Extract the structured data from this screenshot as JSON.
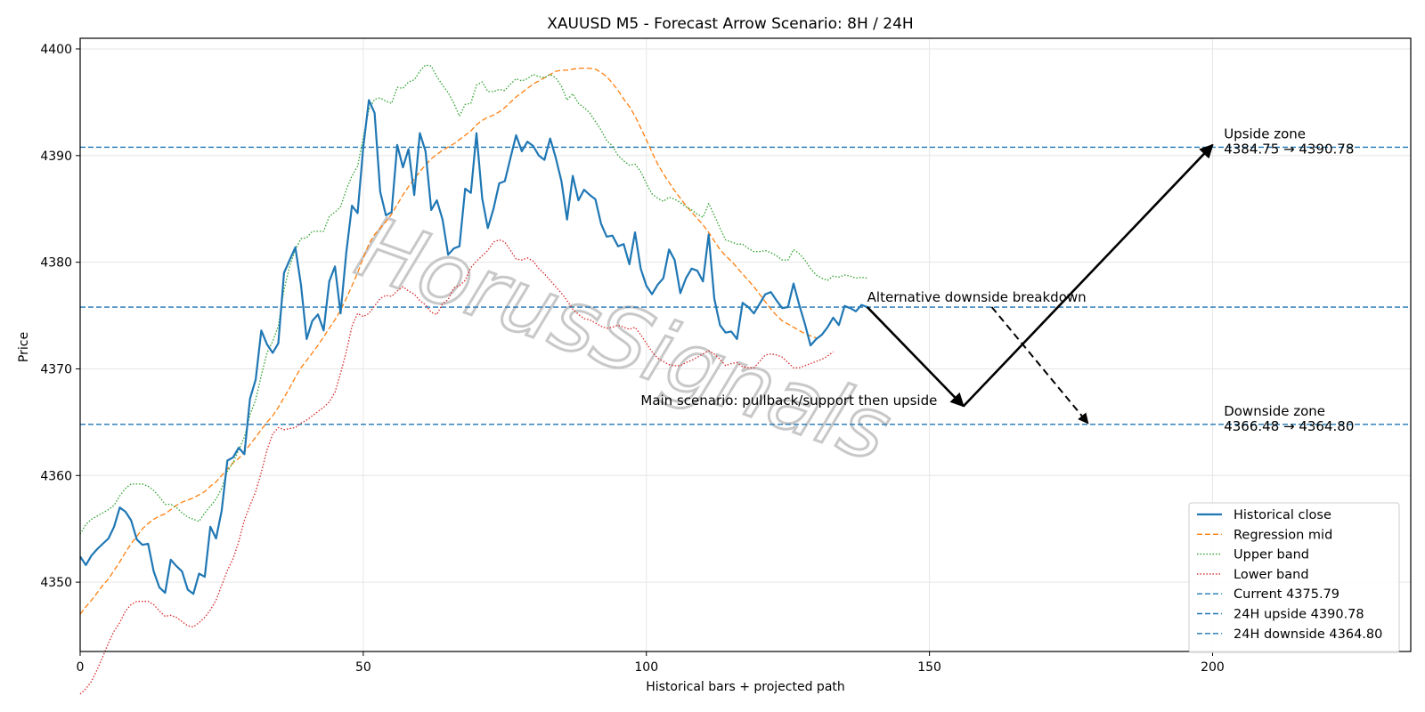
{
  "chart_data": {
    "type": "line",
    "title": "XAUUSD M5 - Forecast Arrow Scenario: 8H / 24H",
    "xlabel": "Historical bars + projected path",
    "ylabel": "Price",
    "xlim": [
      0,
      235
    ],
    "ylim": [
      4343.5,
      4401.0
    ],
    "xticks": [
      0,
      50,
      100,
      150,
      200
    ],
    "yticks": [
      4350,
      4360,
      4370,
      4380,
      4390,
      4400
    ],
    "grid": true,
    "legend_position": "bottom-right",
    "watermark": "HorusSignals",
    "colors": {
      "blue": "#1f77b4",
      "orange": "#ff7f0e",
      "green": "#2ca02c",
      "red": "#d62728"
    },
    "series": [
      {
        "name": "Historical close",
        "style": "solid",
        "color": "#1f77b4",
        "x_start": 0,
        "values": [
          4352.4,
          4351.6,
          4352.5,
          4353.1,
          4353.6,
          4354.1,
          4355.2,
          4357.0,
          4356.6,
          4355.8,
          4354.0,
          4353.5,
          4353.6,
          4351.0,
          4349.5,
          4349.0,
          4352.1,
          4351.5,
          4351.0,
          4349.3,
          4348.9,
          4350.8,
          4350.5,
          4355.2,
          4354.1,
          4356.7,
          4361.4,
          4361.7,
          4362.6,
          4362.0,
          4367.2,
          4369.0,
          4373.6,
          4372.3,
          4371.5,
          4372.4,
          4379.0,
          4380.2,
          4381.4,
          4377.9,
          4372.8,
          4374.5,
          4375.1,
          4373.6,
          4378.2,
          4379.6,
          4375.2,
          4380.9,
          4385.3,
          4384.6,
          4390.8,
          4395.2,
          4394.0,
          4386.6,
          4384.4,
          4384.7,
          4391.0,
          4388.9,
          4390.6,
          4386.3,
          4392.1,
          4390.4,
          4384.9,
          4385.8,
          4384.0,
          4380.7,
          4381.3,
          4381.5,
          4386.9,
          4386.5,
          4392.1,
          4386.0,
          4383.2,
          4385.0,
          4387.4,
          4387.6,
          4389.8,
          4391.9,
          4390.4,
          4391.3,
          4390.9,
          4390.0,
          4389.6,
          4391.6,
          4389.8,
          4387.6,
          4384.0,
          4388.1,
          4385.8,
          4386.8,
          4386.3,
          4385.9,
          4383.6,
          4382.4,
          4382.5,
          4381.5,
          4381.7,
          4379.8,
          4382.8,
          4379.4,
          4377.8,
          4377.0,
          4377.9,
          4378.5,
          4381.2,
          4380.2,
          4377.1,
          4378.5,
          4379.4,
          4379.2,
          4378.2,
          4382.6,
          4376.6,
          4374.1,
          4373.4,
          4373.5,
          4372.8,
          4376.2,
          4375.8,
          4375.2,
          4376.1,
          4377.0,
          4377.2,
          4376.4,
          4375.7,
          4375.8,
          4378.0,
          4376.0,
          4374.2,
          4372.2,
          4372.8,
          4373.2,
          4373.9,
          4374.8,
          4374.1,
          4375.9,
          4375.7,
          4375.4,
          4376.0,
          4375.8
        ]
      },
      {
        "name": "Regression mid",
        "style": "dashed",
        "color": "#ff7f0e",
        "x_start": 0,
        "values": [
          4347.0,
          4347.7,
          4348.3,
          4349.0,
          4349.7,
          4350.3,
          4351.1,
          4351.9,
          4352.8,
          4353.6,
          4354.3,
          4355.0,
          4355.5,
          4355.9,
          4356.2,
          4356.4,
          4356.8,
          4357.2,
          4357.5,
          4357.7,
          4357.9,
          4358.2,
          4358.5,
          4359.0,
          4359.4,
          4360.0,
          4360.6,
          4361.2,
          4361.6,
          4362.2,
          4362.9,
          4363.6,
          4364.3,
          4365.0,
          4365.6,
          4366.4,
          4367.3,
          4368.2,
          4369.2,
          4370.1,
          4370.8,
          4371.5,
          4372.2,
          4373.0,
          4373.8,
          4374.6,
          4375.5,
          4376.6,
          4377.8,
          4379.0,
          4380.4,
          4381.7,
          4382.6,
          4383.2,
          4383.8,
          4384.5,
          4385.4,
          4386.3,
          4387.1,
          4387.8,
          4388.5,
          4389.1,
          4389.7,
          4390.1,
          4390.5,
          4390.8,
          4391.1,
          4391.5,
          4391.9,
          4392.3,
          4392.9,
          4393.3,
          4393.6,
          4393.8,
          4394.1,
          4394.5,
          4395.0,
          4395.5,
          4395.9,
          4396.3,
          4396.7,
          4397.0,
          4397.3,
          4397.6,
          4397.9,
          4398.0,
          4398.0,
          4398.1,
          4398.2,
          4398.2,
          4398.2,
          4398.1,
          4397.8,
          4397.4,
          4396.8,
          4396.1,
          4395.3,
          4394.6,
          4393.7,
          4392.6,
          4391.5,
          4390.3,
          4389.2,
          4388.3,
          4387.5,
          4386.7,
          4386.0,
          4385.3,
          4384.7,
          4384.1,
          4383.5,
          4382.8,
          4382.0,
          4381.2,
          4380.6,
          4380.1,
          4379.5,
          4378.9,
          4378.3,
          4377.7,
          4377.0,
          4376.3,
          4375.6,
          4375.0,
          4374.5,
          4374.2,
          4373.9,
          4373.6,
          4373.3,
          4373.1,
          4372.9
        ]
      },
      {
        "name": "Upper band",
        "style": "dotted",
        "color": "#2ca02c",
        "x_start": 0,
        "values": [
          4354.5,
          4355.4,
          4355.9,
          4356.2,
          4356.5,
          4356.8,
          4357.2,
          4358.1,
          4358.8,
          4359.2,
          4359.2,
          4359.2,
          4359.0,
          4358.6,
          4358.0,
          4357.3,
          4357.3,
          4357.0,
          4356.5,
          4356.1,
          4355.9,
          4355.7,
          4356.5,
          4357.1,
          4357.8,
          4358.8,
          4360.4,
          4361.2,
          4362.4,
          4363.6,
          4365.7,
          4367.1,
          4369.4,
          4371.5,
          4372.6,
          4374.0,
          4377.4,
          4379.6,
          4381.2,
          4382.2,
          4382.3,
          4382.9,
          4382.9,
          4382.9,
          4384.3,
          4384.7,
          4385.2,
          4386.8,
          4388.1,
          4389.0,
          4391.7,
          4394.3,
          4395.3,
          4395.4,
          4395.1,
          4394.9,
          4396.4,
          4396.3,
          4396.9,
          4397.1,
          4397.9,
          4398.5,
          4398.4,
          4397.4,
          4396.6,
          4395.9,
          4394.9,
          4393.7,
          4394.8,
          4394.9,
          4396.6,
          4396.9,
          4396.0,
          4396.0,
          4396.2,
          4396.1,
          4396.7,
          4397.2,
          4397.0,
          4397.2,
          4397.6,
          4397.4,
          4397.3,
          4397.6,
          4397.3,
          4396.5,
          4395.2,
          4395.8,
          4394.9,
          4394.5,
          4394.0,
          4393.2,
          4392.4,
          4391.4,
          4390.9,
          4390.0,
          4389.5,
          4389.1,
          4389.2,
          4388.5,
          4387.4,
          4386.4,
          4386.0,
          4385.7,
          4386.1,
          4385.9,
          4385.6,
          4385.2,
          4384.9,
          4384.5,
          4384.2,
          4385.5,
          4384.4,
          4383.2,
          4382.1,
          4381.9,
          4381.7,
          4381.7,
          4381.3,
          4381.0,
          4381.0,
          4381.1,
          4380.9,
          4380.6,
          4380.2,
          4380.2,
          4381.2,
          4380.8,
          4380.2,
          4379.4,
          4378.8,
          4378.5,
          4378.3,
          4378.7,
          4378.6,
          4378.8,
          4378.7,
          4378.5,
          4378.6,
          4378.5
        ]
      },
      {
        "name": "Lower band",
        "style": "dotted",
        "color": "#d62728",
        "x_start": 0,
        "values": [
          4339.5,
          4340.0,
          4340.7,
          4341.8,
          4343.0,
          4344.3,
          4345.4,
          4346.2,
          4347.3,
          4347.9,
          4348.2,
          4348.2,
          4348.2,
          4347.9,
          4347.3,
          4346.8,
          4346.9,
          4346.7,
          4346.3,
          4345.9,
          4345.8,
          4346.2,
          4346.7,
          4347.4,
          4348.3,
          4349.7,
          4351.1,
          4352.2,
          4353.8,
          4355.8,
          4357.2,
          4358.5,
          4360.3,
          4362.4,
          4363.9,
          4364.5,
          4364.3,
          4364.4,
          4364.5,
          4364.9,
          4365.2,
          4365.6,
          4366.0,
          4366.4,
          4366.9,
          4367.8,
          4369.6,
          4371.6,
          4374.0,
          4375.2,
          4374.9,
          4375.2,
          4375.9,
          4376.6,
          4376.9,
          4376.8,
          4377.3,
          4377.7,
          4377.3,
          4377.0,
          4376.4,
          4376.0,
          4375.3,
          4375.1,
          4376.1,
          4376.5,
          4377.6,
          4377.8,
          4378.3,
          4379.5,
          4380.1,
          4380.6,
          4381.1,
          4381.9,
          4382.1,
          4381.9,
          4381.1,
          4380.3,
          4380.2,
          4380.4,
          4380.1,
          4379.4,
          4378.9,
          4378.3,
          4377.7,
          4377.1,
          4376.4,
          4375.6,
          4375.1,
          4374.7,
          4374.6,
          4374.3,
          4374.0,
          4373.8,
          4373.9,
          4374.1,
          4373.9,
          4373.7,
          4373.9,
          4373.2,
          4372.4,
          4371.6,
          4371.0,
          4370.7,
          4370.4,
          4370.3,
          4370.3,
          4370.6,
          4370.8,
          4371.1,
          4371.4,
          4371.7,
          4371.4,
          4370.9,
          4370.3,
          4370.5,
          4370.6,
          4370.2,
          4370.1,
          4370.1,
          4370.7,
          4371.3,
          4371.4,
          4371.3,
          4371.1,
          4370.6,
          4370.1,
          4370.1,
          4370.3,
          4370.5,
          4370.7,
          4370.9,
          4371.2,
          4371.6
        ]
      }
    ],
    "hlines": [
      {
        "name": "Current 4375.79",
        "y": 4375.79,
        "color": "#1f77b4",
        "style": "dashed"
      },
      {
        "name": "24H upside 4390.78",
        "y": 4390.78,
        "color": "#1f77b4",
        "style": "dashed"
      },
      {
        "name": "24H downside 4364.80",
        "y": 4364.8,
        "color": "#1f77b4",
        "style": "dashed"
      }
    ],
    "arrows": [
      {
        "name": "main-down",
        "from": [
          139,
          4375.8
        ],
        "to": [
          156,
          4366.5
        ],
        "style": "solid"
      },
      {
        "name": "main-up",
        "from": [
          156,
          4366.5
        ],
        "to": [
          200,
          4391.0
        ],
        "style": "solid"
      },
      {
        "name": "alt-down",
        "from": [
          161,
          4375.8
        ],
        "to": [
          178,
          4364.9
        ],
        "style": "dashed"
      }
    ],
    "annotations": [
      {
        "text": "Alternative downside breakdown",
        "x": 139,
        "y": 4376.3
      },
      {
        "text": "Main scenario: pullback/support then upside",
        "x": 99,
        "y": 4366.6
      }
    ],
    "zone_labels": [
      {
        "title": "Upside zone",
        "range": "4384.75 → 4390.78",
        "x": 202,
        "y": 4391.6
      },
      {
        "title": "Downside zone",
        "range": "4366.48 → 4364.80",
        "x": 202,
        "y": 4365.6
      }
    ]
  }
}
